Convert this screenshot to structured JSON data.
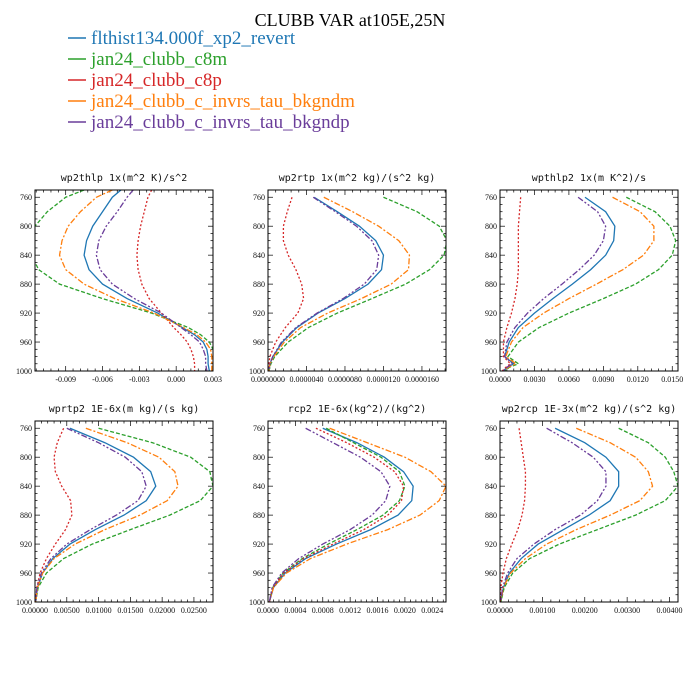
{
  "figure": {
    "title": "CLUBB VAR at105E,25N"
  },
  "legend": [
    {
      "label": "flthist134.000f_xp2_revert",
      "color": "#1f77b4"
    },
    {
      "label": "jan24_clubb_c8m",
      "color": "#2ca02c"
    },
    {
      "label": "jan24_clubb_c8p",
      "color": "#d62728"
    },
    {
      "label": "jan24_clubb_c_invrs_tau_bkgndm",
      "color": "#ff7f0e"
    },
    {
      "label": "jan24_clubb_c_invrs_tau_bkgndp",
      "color": "#6a3d9a"
    }
  ],
  "chart_data": [
    {
      "type": "line",
      "title": "wp2thlp   1x(m^2 K)/s^2",
      "y_label_ticks": [
        "760",
        "800",
        "840",
        "880",
        "920",
        "960",
        "1000"
      ],
      "x_ticks": [
        "-0.009",
        "-0.006",
        "-0.003",
        "0.000",
        "0.003"
      ],
      "xlim": [
        -0.0115,
        0.003
      ],
      "ylim": [
        1000,
        750
      ],
      "y": [
        750,
        760,
        780,
        800,
        820,
        840,
        860,
        880,
        900,
        920,
        940,
        950,
        960,
        970,
        980,
        990,
        1000
      ],
      "series": [
        {
          "name": "flthist134.000f_xp2_revert",
          "values": [
            -0.0045,
            -0.0052,
            -0.006,
            -0.0068,
            -0.0073,
            -0.0075,
            -0.0071,
            -0.006,
            -0.004,
            -0.0015,
            0.0005,
            0.0015,
            0.0022,
            0.0025,
            0.0026,
            0.0026,
            0.0027
          ]
        },
        {
          "name": "jan24_clubb_c8m",
          "values": [
            -0.0075,
            -0.009,
            -0.0105,
            -0.0115,
            -0.0118,
            -0.0118,
            -0.0112,
            -0.0095,
            -0.006,
            -0.002,
            0.001,
            0.002,
            0.0027,
            0.003,
            0.0031,
            0.0031,
            0.003
          ]
        },
        {
          "name": "jan24_clubb_c8p",
          "values": [
            -0.002,
            -0.0023,
            -0.0026,
            -0.0029,
            -0.0031,
            -0.0032,
            -0.0031,
            -0.0028,
            -0.0022,
            -0.0012,
            -0.0002,
            0.0004,
            0.0009,
            0.0012,
            0.0014,
            0.0015,
            0.0015
          ]
        },
        {
          "name": "jan24_clubb_c_invrs_tau_bkgndm",
          "values": [
            -0.0052,
            -0.0065,
            -0.0078,
            -0.0088,
            -0.0093,
            -0.0095,
            -0.009,
            -0.0075,
            -0.005,
            -0.0018,
            0.0006,
            0.0017,
            0.0024,
            0.0028,
            0.0029,
            0.0029,
            0.0029
          ]
        },
        {
          "name": "jan24_clubb_c_invrs_tau_bkgndp",
          "values": [
            -0.0035,
            -0.004,
            -0.0048,
            -0.0057,
            -0.0063,
            -0.0065,
            -0.0062,
            -0.0052,
            -0.0034,
            -0.0012,
            0.0004,
            0.0012,
            0.0019,
            0.0022,
            0.0024,
            0.0024,
            0.0025
          ]
        }
      ]
    },
    {
      "type": "line",
      "title": "wp2rtp   1x(m^2 kg)/(s^2 kg)",
      "y_label_ticks": [
        "760",
        "800",
        "840",
        "880",
        "920",
        "960",
        "1000"
      ],
      "x_ticks": [
        "0.0000000",
        "0.0000040",
        "0.0000080",
        "0.0000120",
        "0.0000160"
      ],
      "xlim": [
        0,
        1.85e-05
      ],
      "ylim": [
        1000,
        750
      ],
      "y": [
        760,
        780,
        800,
        820,
        840,
        860,
        880,
        900,
        920,
        940,
        960,
        980,
        990,
        1000
      ],
      "series": [
        {
          "name": "flthist134.000f_xp2_revert",
          "values": [
            4.8e-06,
            7.2e-06,
            9.5e-06,
            1.12e-05,
            1.2e-05,
            1.18e-05,
            1.04e-05,
            8e-06,
            5.2e-06,
            3e-06,
            1.5e-06,
            5e-07,
            2e-07,
            1e-07
          ]
        },
        {
          "name": "jan24_clubb_c8m",
          "values": [
            1.2e-05,
            1.55e-05,
            1.78e-05,
            1.86e-05,
            1.83e-05,
            1.68e-05,
            1.43e-05,
            1.08e-05,
            7.2e-06,
            4.2e-06,
            2.1e-06,
            7e-07,
            3e-07,
            1e-07
          ]
        },
        {
          "name": "jan24_clubb_c8p",
          "values": [
            2.5e-06,
            2e-06,
            1.6e-06,
            1.6e-06,
            2.1e-06,
            2.9e-06,
            3.5e-06,
            3.7e-06,
            3.1e-06,
            1.8e-06,
            8e-07,
            2e-07,
            1e-07,
            0
          ]
        },
        {
          "name": "jan24_clubb_c_invrs_tau_bkgndm",
          "values": [
            5.8e-06,
            8.8e-06,
            1.15e-05,
            1.36e-05,
            1.47e-05,
            1.46e-05,
            1.28e-05,
            9.7e-06,
            6.2e-06,
            3.4e-06,
            1.7e-06,
            6e-07,
            2e-07,
            1e-07
          ]
        },
        {
          "name": "jan24_clubb_c_invrs_tau_bkgndp",
          "values": [
            4.7e-06,
            7e-06,
            9.2e-06,
            1.08e-05,
            1.15e-05,
            1.13e-05,
            1e-05,
            7.8e-06,
            5.1e-06,
            2.9e-06,
            1.4e-06,
            5e-07,
            2e-07,
            1e-07
          ]
        }
      ]
    },
    {
      "type": "line",
      "title": "wpthlp2   1x(m K^2)/s",
      "y_label_ticks": [
        "760",
        "800",
        "840",
        "880",
        "920",
        "960",
        "1000"
      ],
      "x_ticks": [
        "0.0000",
        "0.0030",
        "0.0060",
        "0.0090",
        "0.0120",
        "0.0150"
      ],
      "xlim": [
        0,
        0.0155
      ],
      "ylim": [
        1000,
        750
      ],
      "y": [
        760,
        780,
        800,
        820,
        840,
        860,
        880,
        900,
        920,
        940,
        960,
        980,
        990,
        995,
        1000
      ],
      "series": [
        {
          "name": "flthist134.000f_xp2_revert",
          "values": [
            0.0074,
            0.0092,
            0.01,
            0.0099,
            0.0092,
            0.0079,
            0.0063,
            0.0046,
            0.003,
            0.0016,
            0.0008,
            0.0004,
            0.0012,
            0.0006,
            0.0003
          ]
        },
        {
          "name": "jan24_clubb_c8m",
          "values": [
            0.011,
            0.0135,
            0.0148,
            0.0153,
            0.015,
            0.0138,
            0.0118,
            0.009,
            0.006,
            0.0034,
            0.0016,
            0.0007,
            0.0016,
            0.0008,
            0.0004
          ]
        },
        {
          "name": "jan24_clubb_c8p",
          "values": [
            0.0018,
            0.0017,
            0.0016,
            0.0016,
            0.0016,
            0.0016,
            0.0015,
            0.0013,
            0.001,
            0.0006,
            0.0003,
            0.0003,
            0.0009,
            0.0005,
            0.0002
          ]
        },
        {
          "name": "jan24_clubb_c_invrs_tau_bkgndm",
          "values": [
            0.0098,
            0.0122,
            0.0134,
            0.0134,
            0.0125,
            0.0107,
            0.0084,
            0.006,
            0.0038,
            0.002,
            0.001,
            0.0005,
            0.0014,
            0.0007,
            0.0003
          ]
        },
        {
          "name": "jan24_clubb_c_invrs_tau_bkgndp",
          "values": [
            0.0068,
            0.0085,
            0.0092,
            0.009,
            0.0082,
            0.0069,
            0.0054,
            0.0038,
            0.0024,
            0.0013,
            0.0006,
            0.0004,
            0.0011,
            0.0006,
            0.0003
          ]
        }
      ]
    },
    {
      "type": "line",
      "title": "wprtp2   1E-6x(m kg)/(s kg)",
      "y_label_ticks": [
        "760",
        "800",
        "840",
        "880",
        "920",
        "960",
        "1000"
      ],
      "x_ticks": [
        "0.00000",
        "0.00500",
        "0.01000",
        "0.01500",
        "0.02000",
        "0.02500"
      ],
      "xlim": [
        0,
        0.028
      ],
      "ylim": [
        1000,
        750
      ],
      "y": [
        760,
        780,
        800,
        820,
        840,
        860,
        880,
        900,
        920,
        940,
        960,
        980,
        1000
      ],
      "series": [
        {
          "name": "flthist134.000f_xp2_revert",
          "values": [
            0.0055,
            0.011,
            0.0155,
            0.0182,
            0.019,
            0.0175,
            0.014,
            0.0095,
            0.0055,
            0.0028,
            0.0012,
            0.0004,
            0.0001
          ]
        },
        {
          "name": "jan24_clubb_c8m",
          "values": [
            0.01,
            0.0185,
            0.0245,
            0.0275,
            0.028,
            0.026,
            0.0212,
            0.015,
            0.009,
            0.0045,
            0.0018,
            0.0005,
            0.0001
          ]
        },
        {
          "name": "jan24_clubb_c8p",
          "values": [
            0.0045,
            0.0035,
            0.003,
            0.0032,
            0.0042,
            0.0056,
            0.0058,
            0.0048,
            0.0032,
            0.0018,
            0.0008,
            0.0003,
            0.0001
          ]
        },
        {
          "name": "jan24_clubb_c_invrs_tau_bkgndm",
          "values": [
            0.008,
            0.0145,
            0.0195,
            0.022,
            0.0225,
            0.0208,
            0.0165,
            0.011,
            0.0063,
            0.003,
            0.0012,
            0.0004,
            0.0001
          ]
        },
        {
          "name": "jan24_clubb_c_invrs_tau_bkgndp",
          "values": [
            0.005,
            0.01,
            0.0142,
            0.0168,
            0.0175,
            0.0162,
            0.0128,
            0.0087,
            0.005,
            0.0025,
            0.001,
            0.0003,
            0.0001
          ]
        }
      ]
    },
    {
      "type": "line",
      "title": "rcp2   1E-6x(kg^2)/(kg^2)",
      "y_label_ticks": [
        "760",
        "800",
        "840",
        "880",
        "920",
        "960",
        "1000"
      ],
      "x_ticks": [
        "0.0000",
        "0.0004",
        "0.0008",
        "0.0012",
        "0.0016",
        "0.0020",
        "0.0024"
      ],
      "xlim": [
        0,
        0.0026
      ],
      "ylim": [
        1000,
        750
      ],
      "y": [
        760,
        780,
        800,
        820,
        840,
        860,
        880,
        900,
        920,
        940,
        960,
        980,
        1000
      ],
      "series": [
        {
          "name": "flthist134.000f_xp2_revert",
          "values": [
            0.0008,
            0.0013,
            0.0017,
            0.00198,
            0.00212,
            0.0021,
            0.0019,
            0.0015,
            0.001,
            0.00055,
            0.00025,
            8e-05,
            2e-05
          ]
        },
        {
          "name": "jan24_clubb_c8m",
          "values": [
            0.00085,
            0.00125,
            0.00165,
            0.00192,
            0.002,
            0.00192,
            0.00168,
            0.0013,
            0.00088,
            0.0005,
            0.00022,
            7e-05,
            2e-05
          ]
        },
        {
          "name": "jan24_clubb_c8p",
          "values": [
            0.0007,
            0.00115,
            0.00155,
            0.00185,
            0.00198,
            0.00195,
            0.00175,
            0.0014,
            0.00095,
            0.00052,
            0.00023,
            7e-05,
            2e-05
          ]
        },
        {
          "name": "jan24_clubb_c_invrs_tau_bkgndm",
          "values": [
            0.0009,
            0.00145,
            0.002,
            0.00238,
            0.0026,
            0.0025,
            0.00222,
            0.00175,
            0.00115,
            0.00062,
            0.00027,
            8e-05,
            2e-05
          ]
        },
        {
          "name": "jan24_clubb_c_invrs_tau_bkgndp",
          "values": [
            0.00055,
            0.00095,
            0.00135,
            0.00165,
            0.00178,
            0.00172,
            0.00152,
            0.0012,
            0.0008,
            0.00045,
            0.0002,
            6e-05,
            2e-05
          ]
        }
      ]
    },
    {
      "type": "line",
      "title": "wp2rcp   1E-3x(m^2 kg)/(s^2 kg)",
      "y_label_ticks": [
        "760",
        "800",
        "840",
        "880",
        "920",
        "960",
        "1000"
      ],
      "x_ticks": [
        "0.00000",
        "0.00100",
        "0.00200",
        "0.00300",
        "0.00400"
      ],
      "xlim": [
        0,
        0.0042
      ],
      "ylim": [
        1000,
        750
      ],
      "y": [
        760,
        780,
        800,
        820,
        840,
        860,
        880,
        900,
        920,
        940,
        960,
        980,
        1000
      ],
      "series": [
        {
          "name": "flthist134.000f_xp2_revert",
          "values": [
            0.0013,
            0.002,
            0.0025,
            0.0028,
            0.0028,
            0.0026,
            0.0021,
            0.0015,
            0.0009,
            0.0005,
            0.00022,
            8e-05,
            2e-05
          ]
        },
        {
          "name": "jan24_clubb_c8m",
          "values": [
            0.0028,
            0.0035,
            0.0039,
            0.0041,
            0.0042,
            0.0039,
            0.0032,
            0.0023,
            0.0014,
            0.0007,
            0.0003,
            0.0001,
            2e-05
          ]
        },
        {
          "name": "jan24_clubb_c8p",
          "values": [
            0.00045,
            0.0005,
            0.00055,
            0.0006,
            0.0006,
            0.00058,
            0.00052,
            0.00042,
            0.00028,
            0.00015,
            7e-05,
            2e-05,
            1e-05
          ]
        },
        {
          "name": "jan24_clubb_c_invrs_tau_bkgndm",
          "values": [
            0.0018,
            0.0026,
            0.0032,
            0.0035,
            0.0036,
            0.0033,
            0.0026,
            0.0018,
            0.0011,
            0.0006,
            0.00025,
            8e-05,
            2e-05
          ]
        },
        {
          "name": "jan24_clubb_c_invrs_tau_bkgndp",
          "values": [
            0.0011,
            0.0017,
            0.0022,
            0.0025,
            0.0025,
            0.0023,
            0.0019,
            0.0013,
            0.0008,
            0.0004,
            0.00018,
            6e-05,
            2e-05
          ]
        }
      ]
    }
  ]
}
